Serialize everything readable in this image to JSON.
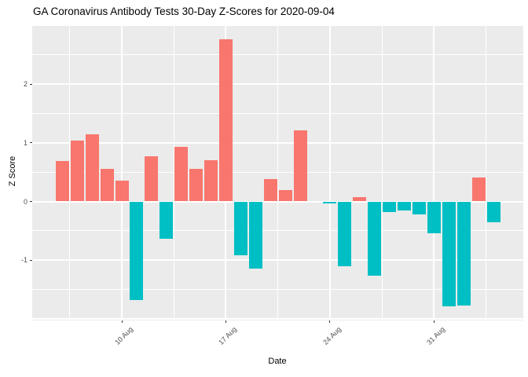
{
  "chart_data": {
    "type": "bar",
    "title": "GA Coronavirus Antibody Tests 30-Day Z-Scores for 2020-09-04",
    "xlabel": "Date",
    "ylabel": "Z Score",
    "legend": "none",
    "grid": true,
    "panel_bg": "#EBEBEB",
    "grid_color": "#FFFFFF",
    "tick_text_color": "#4D4D4D",
    "positive_color": "#F8766D",
    "negative_color": "#00BFC4",
    "ylim": [
      -2.03,
      3.02
    ],
    "y_ticks": [
      2,
      1,
      0,
      -1
    ],
    "x_ticks": [
      {
        "label": "10 Aug",
        "date": "2020-08-10"
      },
      {
        "label": "17 Aug",
        "date": "2020-08-17"
      },
      {
        "label": "24 Aug",
        "date": "2020-08-24"
      },
      {
        "label": "31 Aug",
        "date": "2020-08-31"
      }
    ],
    "dates": [
      "2020-08-06",
      "2020-08-07",
      "2020-08-08",
      "2020-08-09",
      "2020-08-10",
      "2020-08-11",
      "2020-08-12",
      "2020-08-13",
      "2020-08-14",
      "2020-08-15",
      "2020-08-16",
      "2020-08-17",
      "2020-08-18",
      "2020-08-19",
      "2020-08-20",
      "2020-08-21",
      "2020-08-22",
      "2020-08-23",
      "2020-08-24",
      "2020-08-25",
      "2020-08-26",
      "2020-08-27",
      "2020-08-28",
      "2020-08-29",
      "2020-08-30",
      "2020-08-31",
      "2020-09-01",
      "2020-09-02",
      "2020-09-03",
      "2020-09-04"
    ],
    "values": [
      0.69,
      1.04,
      1.14,
      0.56,
      0.36,
      -1.68,
      0.77,
      -0.63,
      0.93,
      0.56,
      0.7,
      2.77,
      -0.92,
      -1.15,
      0.38,
      0.2,
      1.21,
      0.0,
      -0.04,
      -1.11,
      0.08,
      -1.27,
      -0.18,
      -0.16,
      -0.22,
      -0.54,
      -1.79,
      -1.77,
      0.41,
      -0.35
    ]
  }
}
